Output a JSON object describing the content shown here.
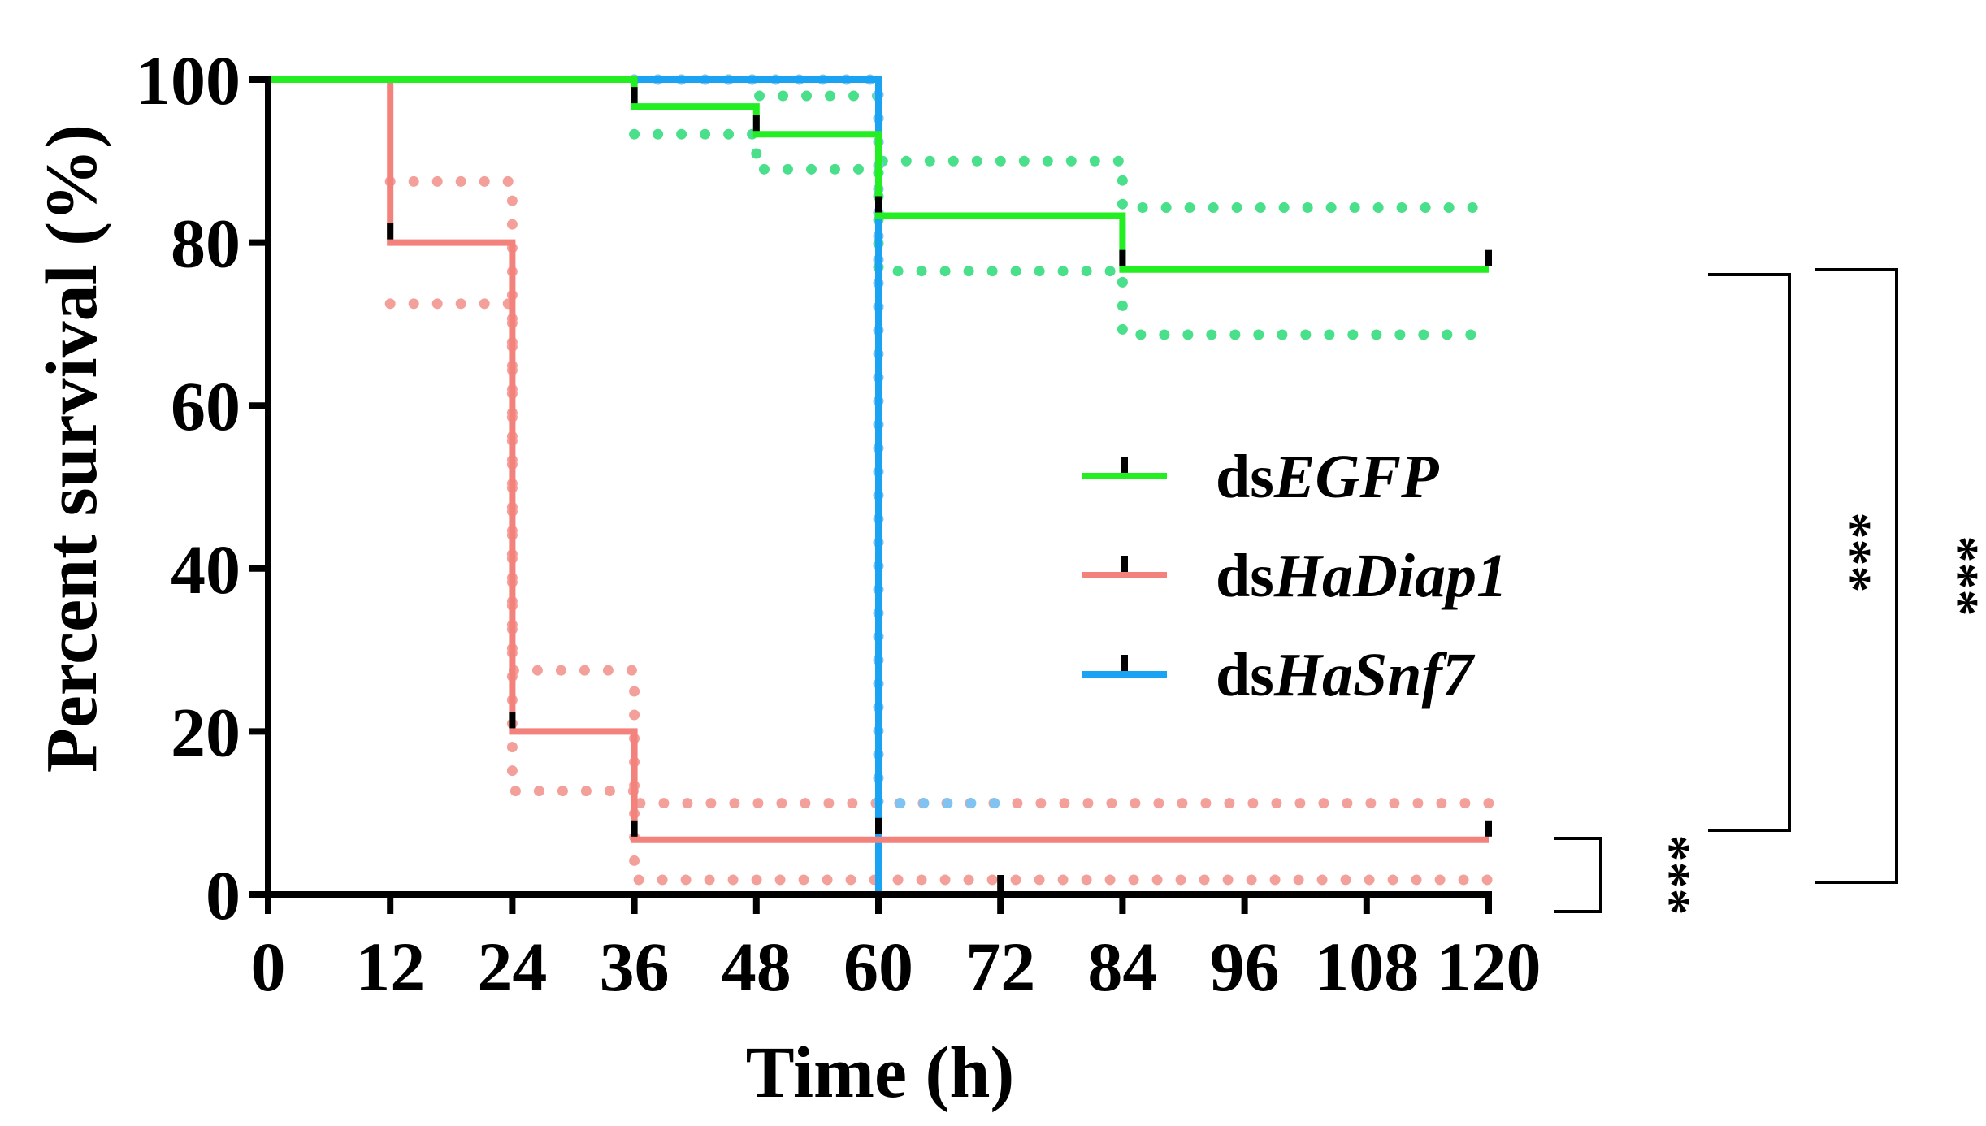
{
  "chart_data": {
    "type": "line",
    "subtype": "kaplan-meier survival curve (step)",
    "title": "",
    "xlabel": "Time (h)",
    "ylabel": "Percent survival (%)",
    "xlim": [
      0,
      120
    ],
    "ylim": [
      0,
      100
    ],
    "x_ticks": [
      0,
      12,
      24,
      36,
      48,
      60,
      72,
      84,
      96,
      108,
      120
    ],
    "x_tick_labels": [
      "0",
      "12",
      "24",
      "36",
      "48",
      "60",
      "72",
      "84",
      "96",
      "108",
      "120"
    ],
    "y_ticks": [
      0,
      20,
      40,
      60,
      80,
      100
    ],
    "y_tick_labels": [
      "0",
      "20",
      "40",
      "60",
      "80",
      "100"
    ],
    "grid": false,
    "legend_position": "center-right",
    "series": [
      {
        "name_prefix": "ds",
        "name_gene": "EGFP",
        "color": "#22EE22",
        "ci_color": "#4ADF8A",
        "steps": [
          [
            0,
            100
          ],
          [
            36,
            96.7
          ],
          [
            48,
            93.3
          ],
          [
            60,
            83.3
          ],
          [
            84,
            76.7
          ],
          [
            120,
            76.7
          ]
        ],
        "ci_upper": [
          [
            36,
            100
          ],
          [
            48,
            98
          ],
          [
            60,
            90
          ],
          [
            84,
            84.3
          ]
        ],
        "ci_lower": [
          [
            36,
            93.3
          ],
          [
            48,
            89
          ],
          [
            60,
            76.5
          ],
          [
            84,
            68.7
          ]
        ],
        "ci_range": [
          36,
          120
        ],
        "censor_marks": [
          [
            36,
            96.7
          ],
          [
            48,
            93.3
          ],
          [
            60,
            83.3
          ],
          [
            84,
            76.7
          ],
          [
            120,
            76.7
          ]
        ]
      },
      {
        "name_prefix": "ds",
        "name_gene": "HaDiap1",
        "color": "#F4827C",
        "ci_color": "#F4A09A",
        "steps": [
          [
            0,
            100
          ],
          [
            12,
            80
          ],
          [
            24,
            20
          ],
          [
            36,
            6.7
          ],
          [
            120,
            6.7
          ]
        ],
        "ci_upper": [
          [
            12,
            87.5
          ],
          [
            24,
            27.5
          ],
          [
            36,
            11.2
          ]
        ],
        "ci_lower": [
          [
            12,
            72.5
          ],
          [
            24,
            12.7
          ],
          [
            36,
            1.8
          ]
        ],
        "ci_range": [
          12,
          120
        ],
        "censor_marks": [
          [
            12,
            80
          ],
          [
            24,
            20
          ],
          [
            36,
            6.7
          ],
          [
            120,
            6.7
          ]
        ]
      },
      {
        "name_prefix": "ds",
        "name_gene": "HaSnf7",
        "color": "#1AA3F2",
        "ci_color": "#7EC3F2",
        "steps": [
          [
            0,
            100
          ],
          [
            60,
            100
          ],
          [
            60,
            0
          ],
          [
            72,
            0
          ]
        ],
        "ci_upper": [
          [
            36,
            100
          ],
          [
            60,
            11.2
          ]
        ],
        "ci_lower": [],
        "ci_range": [
          36,
          72
        ],
        "censor_marks": [
          [
            60,
            7
          ],
          [
            72,
            0
          ]
        ]
      }
    ],
    "significance": [
      {
        "label": "***",
        "compares": [
          "dsEGFP",
          "dsHaDiap1"
        ]
      },
      {
        "label": "***",
        "compares": [
          "dsEGFP",
          "dsHaSnf7"
        ]
      },
      {
        "label": "***",
        "compares": [
          "dsHaDiap1",
          "dsHaSnf7"
        ]
      }
    ]
  }
}
